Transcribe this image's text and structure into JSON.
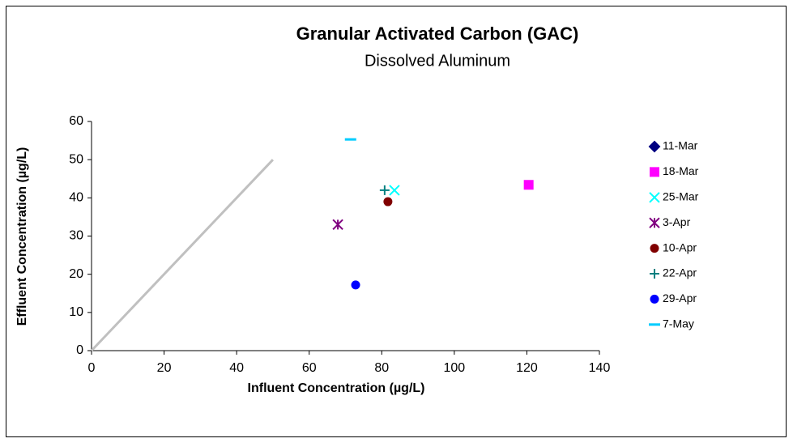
{
  "chart_data": {
    "type": "scatter",
    "title": "Granular Activated Carbon (GAC)",
    "subtitle": "Dissolved Aluminum",
    "x_label": "Influent Concentration (µg/L)",
    "y_label": "Effluent Concentration (µg/L)",
    "xlim": [
      0,
      140
    ],
    "xticks": [
      0,
      20,
      40,
      60,
      80,
      100,
      120,
      140
    ],
    "ylim": [
      0,
      60
    ],
    "yticks": [
      0,
      10,
      20,
      30,
      40,
      50,
      60
    ],
    "grid": false,
    "legend": "right",
    "reference_line": {
      "color": "#c0c0c0",
      "x": [
        0,
        50
      ],
      "values": [
        0,
        50
      ]
    },
    "series": [
      {
        "name": "11-Mar",
        "color": "#000080",
        "marker": "diamond",
        "x": [
          null
        ],
        "values": [
          null
        ]
      },
      {
        "name": "18-Mar",
        "color": "#ff00ff",
        "marker": "square",
        "x": [
          120.5
        ],
        "values": [
          43.4
        ]
      },
      {
        "name": "25-Mar",
        "color": "#00ffff",
        "marker": "x",
        "x": [
          83.5
        ],
        "values": [
          42
        ]
      },
      {
        "name": "3-Apr",
        "color": "#800080",
        "marker": "star",
        "x": [
          67.9
        ],
        "values": [
          33
        ]
      },
      {
        "name": "10-Apr",
        "color": "#800000",
        "marker": "circle",
        "x": [
          81.7
        ],
        "values": [
          39
        ]
      },
      {
        "name": "22-Apr",
        "color": "#008080",
        "marker": "plus",
        "x": [
          80.8
        ],
        "values": [
          42
        ]
      },
      {
        "name": "29-Apr",
        "color": "#0000ff",
        "marker": "circle",
        "x": [
          72.8
        ],
        "values": [
          17.2
        ]
      },
      {
        "name": "7-May",
        "color": "#00ccff",
        "marker": "dash",
        "x": [
          71.4
        ],
        "values": [
          55.3
        ]
      }
    ]
  }
}
